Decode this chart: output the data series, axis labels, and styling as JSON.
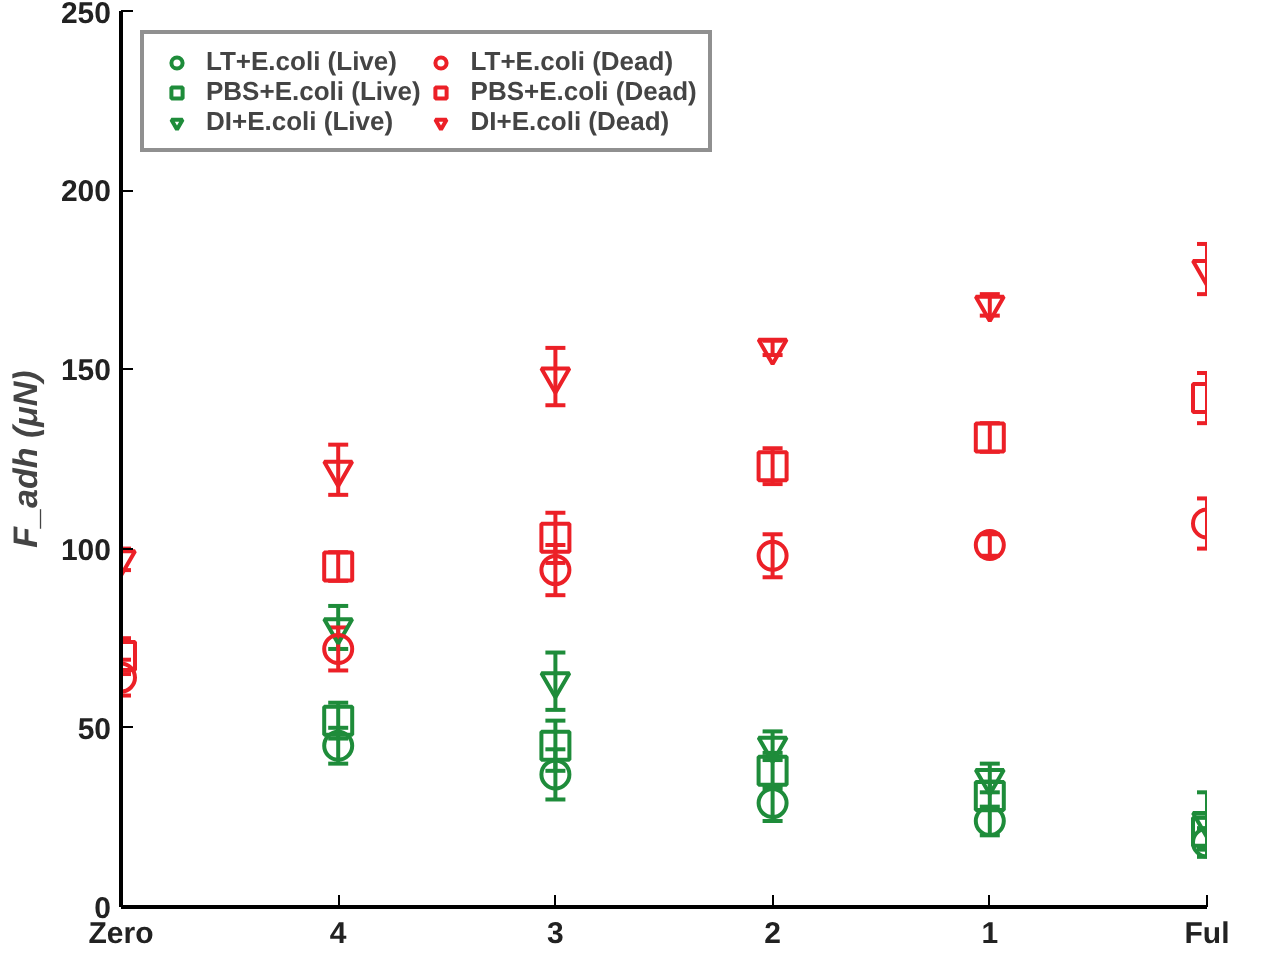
{
  "chart_data": {
    "type": "scatter",
    "ylabel": "F_adh (μN)",
    "categories": [
      "Zero",
      "4",
      "3",
      "2",
      "1",
      "Ful"
    ],
    "ylim": [
      0,
      250
    ],
    "yticks": [
      0,
      50,
      100,
      150,
      200,
      250
    ],
    "grid": false,
    "legend": "top left",
    "series": [
      {
        "name": "LT+E.coli (Live)",
        "color": "#1e8c3a",
        "marker": "circle",
        "values": [
          null,
          45,
          37,
          29,
          24,
          18
        ],
        "errors": [
          null,
          5,
          7,
          5,
          4,
          4
        ]
      },
      {
        "name": "PBS+E.coli (Live)",
        "color": "#1e8c3a",
        "marker": "square",
        "values": [
          null,
          52,
          45,
          38,
          31,
          21
        ],
        "errors": [
          null,
          5,
          7,
          5,
          4,
          4
        ]
      },
      {
        "name": "DI+E.coli (Live)",
        "color": "#1e8c3a",
        "marker": "triangle",
        "values": [
          null,
          78,
          63,
          45,
          36,
          24
        ],
        "errors": [
          null,
          6,
          8,
          4,
          4,
          8
        ]
      },
      {
        "name": "LT+E.coli (Dead)",
        "color": "#ec2027",
        "marker": "circle",
        "values": [
          64,
          72,
          94,
          98,
          101,
          107
        ],
        "errors": [
          5,
          6,
          7,
          6,
          3,
          7
        ]
      },
      {
        "name": "PBS+E.coli (Dead)",
        "color": "#ec2027",
        "marker": "square",
        "values": [
          70,
          95,
          103,
          123,
          131,
          142
        ],
        "errors": [
          5,
          4,
          7,
          5,
          4,
          7
        ]
      },
      {
        "name": "DI+E.coli (Dead)",
        "color": "#ec2027",
        "marker": "triangle",
        "values": [
          97,
          122,
          148,
          156,
          168,
          178
        ],
        "errors": [
          3,
          7,
          8,
          2,
          3,
          7
        ]
      }
    ]
  }
}
